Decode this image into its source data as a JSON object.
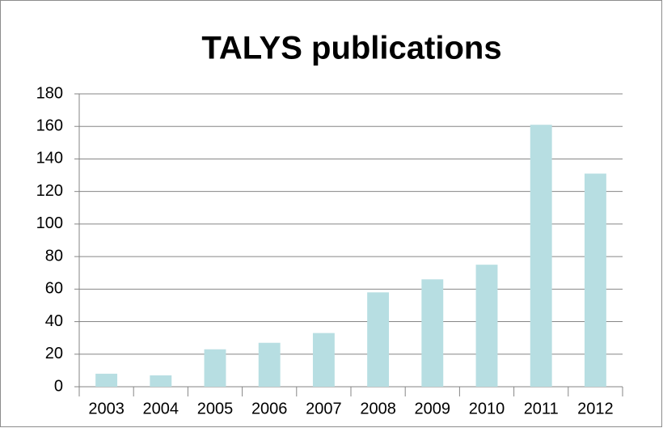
{
  "chart_data": {
    "type": "bar",
    "title": "TALYS publications",
    "categories": [
      "2003",
      "2004",
      "2005",
      "2006",
      "2007",
      "2008",
      "2009",
      "2010",
      "2011",
      "2012"
    ],
    "values": [
      8,
      7,
      23,
      27,
      33,
      58,
      66,
      75,
      161,
      131
    ],
    "color": "#b7dee2",
    "ylim": [
      0,
      180
    ],
    "yticks": [
      0,
      20,
      40,
      60,
      80,
      100,
      120,
      140,
      160,
      180
    ],
    "grid": true
  }
}
